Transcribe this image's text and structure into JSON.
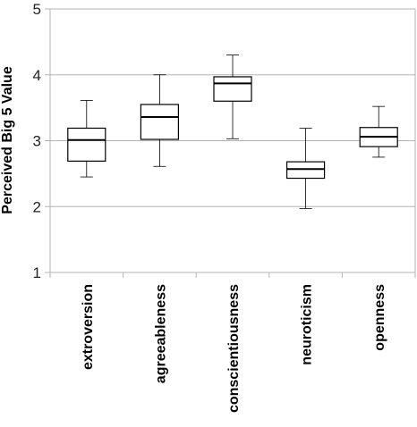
{
  "chart_data": {
    "type": "box",
    "title": "",
    "xlabel": "",
    "ylabel": "Perceived Big 5 Value",
    "ylim": [
      1,
      5
    ],
    "yticks": [
      "1",
      "2",
      "3",
      "4",
      "5"
    ],
    "grid": "horizontal",
    "categories": [
      "extroversion",
      "agreeableness",
      "conscientiousness",
      "neuroticism",
      "openness"
    ],
    "boxes": [
      {
        "min": 2.45,
        "q1": 2.69,
        "median": 3.01,
        "q3": 3.19,
        "max": 3.61
      },
      {
        "min": 2.61,
        "q1": 3.02,
        "median": 3.36,
        "q3": 3.55,
        "max": 4.0
      },
      {
        "min": 3.03,
        "q1": 3.6,
        "median": 3.87,
        "q3": 3.97,
        "max": 4.3
      },
      {
        "min": 1.97,
        "q1": 2.43,
        "median": 2.57,
        "q3": 2.68,
        "max": 3.19
      },
      {
        "min": 2.75,
        "q1": 2.91,
        "median": 3.06,
        "q3": 3.2,
        "max": 3.52
      }
    ],
    "colors": {
      "box_fill": "#ffffff",
      "box_stroke": "#000000",
      "grid": "#b3b3b3",
      "axis": "#b3b3b3"
    }
  }
}
